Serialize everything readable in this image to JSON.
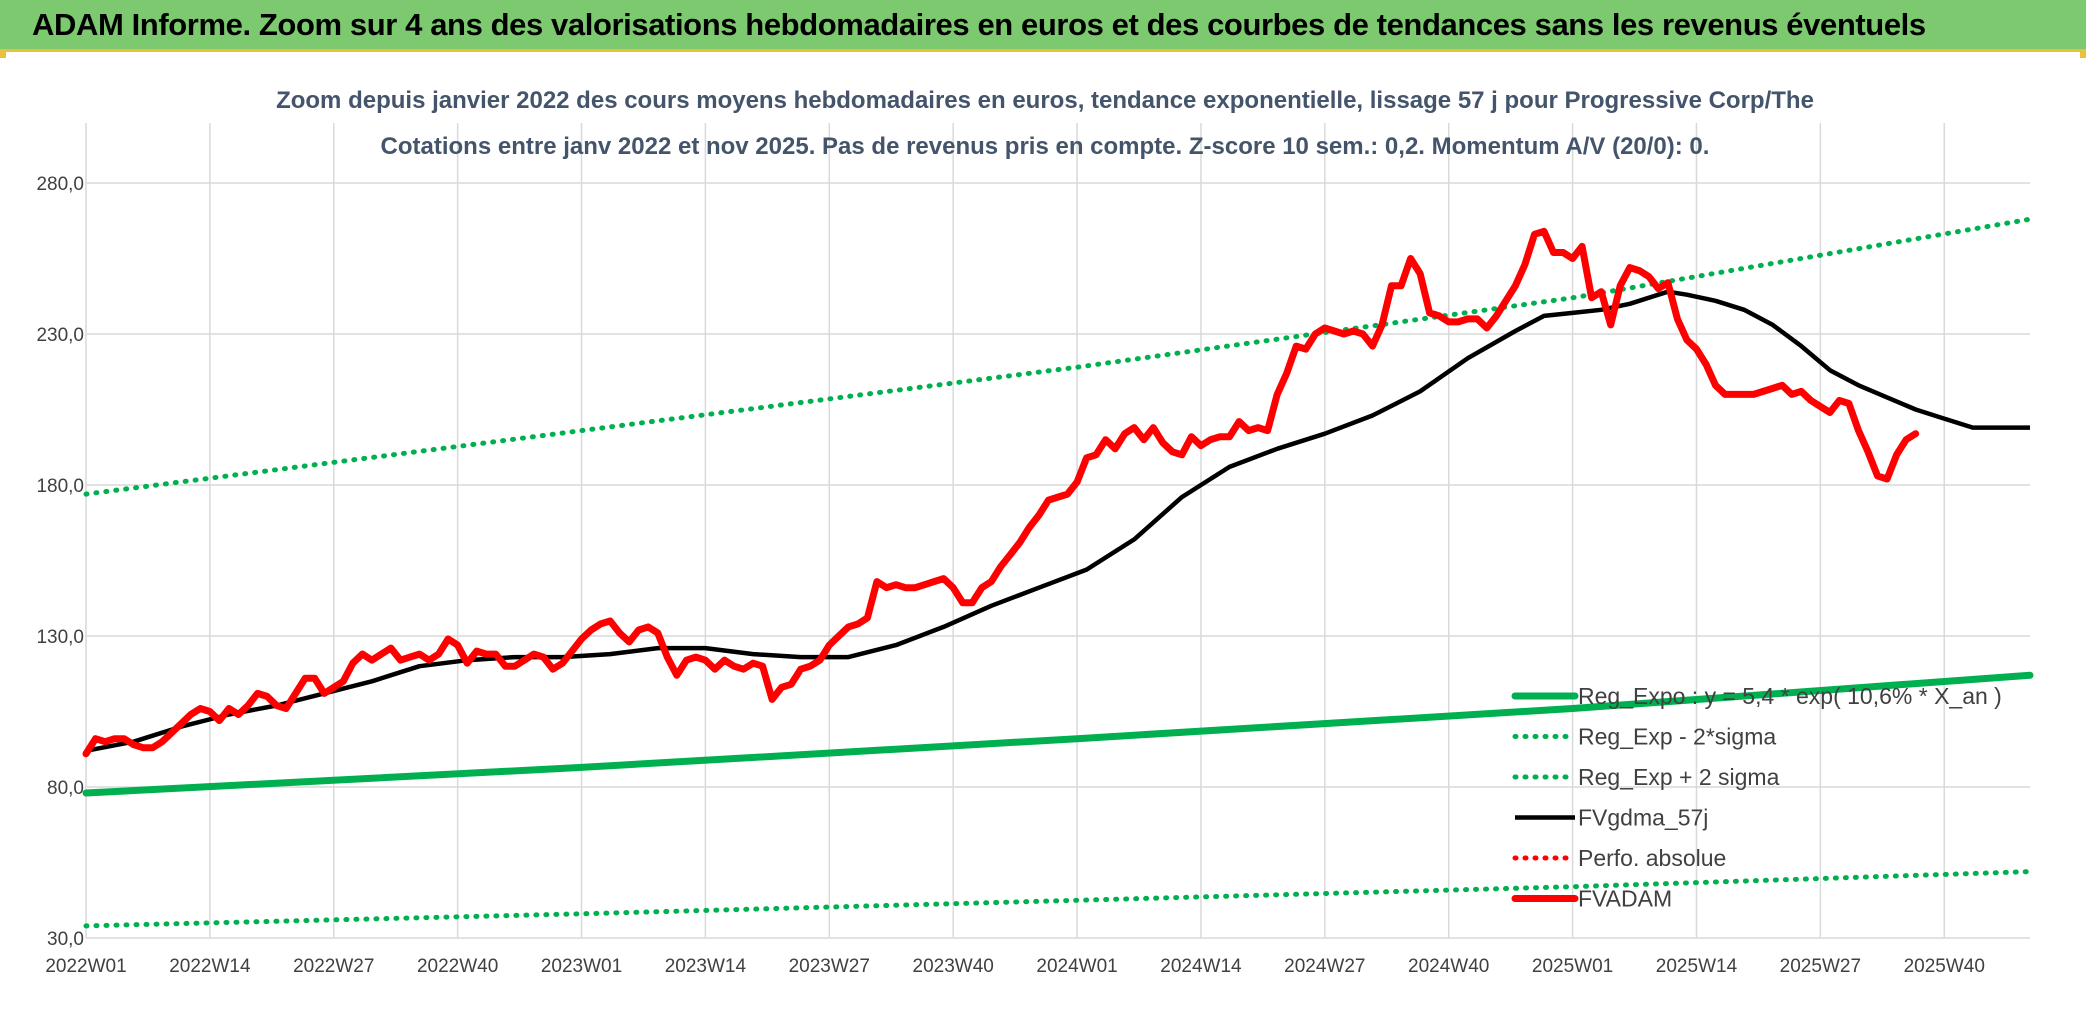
{
  "header": {
    "title": "ADAM Informe. Zoom sur 4 ans des valorisations hebdomadaires en euros et des courbes de tendances sans les revenus éventuels"
  },
  "colors": {
    "banner": "#7cc96f",
    "trend": "#00b050",
    "smooth": "#000000",
    "price": "#ff0000",
    "grid": "#d9d9d9",
    "axis_text": "#404040",
    "title_text": "#44546a"
  },
  "chart_data": {
    "type": "line",
    "title_lines": [
      "Zoom depuis janvier 2022 des cours moyens hebdomadaires en euros, tendance exponentielle, lissage 57 j pour Progressive Corp/The",
      "Cotations entre janv 2022 et nov 2025. Pas de revenus pris en compte. Z-score 10 sem.: 0,2. Momentum A/V (20/0): 0."
    ],
    "x_unit": "week index (0 = 2022W01)",
    "x_ticks": [
      {
        "label": "2022W01",
        "x": 0
      },
      {
        "label": "2022W14",
        "x": 13
      },
      {
        "label": "2022W27",
        "x": 26
      },
      {
        "label": "2022W40",
        "x": 39
      },
      {
        "label": "2023W01",
        "x": 52
      },
      {
        "label": "2023W14",
        "x": 65
      },
      {
        "label": "2023W27",
        "x": 78
      },
      {
        "label": "2023W40",
        "x": 91
      },
      {
        "label": "2024W01",
        "x": 104
      },
      {
        "label": "2024W14",
        "x": 117
      },
      {
        "label": "2024W27",
        "x": 130
      },
      {
        "label": "2024W40",
        "x": 143
      },
      {
        "label": "2025W01",
        "x": 156
      },
      {
        "label": "2025W14",
        "x": 169
      },
      {
        "label": "2025W27",
        "x": 182
      },
      {
        "label": "2025W40",
        "x": 195
      }
    ],
    "xlim": [
      0,
      204
    ],
    "ylim": [
      30,
      280
    ],
    "y_ticks": [
      "30,0",
      "80,0",
      "130,0",
      "180,0",
      "230,0",
      "280,0"
    ],
    "y_tick_values": [
      30,
      80,
      130,
      180,
      230,
      280
    ],
    "legend_position": "bottom-right",
    "series": [
      {
        "name": "Reg_Expo : y = 5,4 * exp( 10,6% *  X_an )",
        "style": "solid-thick",
        "color": "#00b050",
        "points": [
          [
            0,
            78
          ],
          [
            52,
            86.5
          ],
          [
            104,
            96
          ],
          [
            156,
            106
          ],
          [
            204,
            117
          ]
        ]
      },
      {
        "name": "Reg_Exp - 2*sigma",
        "style": "dotted",
        "color": "#00b050",
        "points": [
          [
            0,
            34
          ],
          [
            52,
            38
          ],
          [
            104,
            42.5
          ],
          [
            156,
            47
          ],
          [
            204,
            52
          ]
        ]
      },
      {
        "name": "Reg_Exp + 2 sigma",
        "style": "dotted",
        "color": "#00b050",
        "points": [
          [
            0,
            177
          ],
          [
            52,
            198
          ],
          [
            104,
            219
          ],
          [
            156,
            242
          ],
          [
            204,
            268
          ]
        ]
      },
      {
        "name": "FVgdma_57j",
        "style": "solid",
        "color": "#000000",
        "points": [
          [
            0,
            92
          ],
          [
            5,
            95
          ],
          [
            10,
            100
          ],
          [
            15,
            104
          ],
          [
            20,
            107
          ],
          [
            25,
            111
          ],
          [
            30,
            115
          ],
          [
            35,
            120
          ],
          [
            40,
            122
          ],
          [
            45,
            123
          ],
          [
            50,
            123
          ],
          [
            55,
            124
          ],
          [
            60,
            126
          ],
          [
            65,
            126
          ],
          [
            70,
            124
          ],
          [
            75,
            123
          ],
          [
            80,
            123
          ],
          [
            85,
            127
          ],
          [
            90,
            133
          ],
          [
            95,
            140
          ],
          [
            100,
            146
          ],
          [
            105,
            152
          ],
          [
            110,
            162
          ],
          [
            115,
            176
          ],
          [
            120,
            186
          ],
          [
            125,
            192
          ],
          [
            130,
            197
          ],
          [
            135,
            203
          ],
          [
            140,
            211
          ],
          [
            145,
            222
          ],
          [
            150,
            231
          ],
          [
            153,
            236
          ],
          [
            156,
            237
          ],
          [
            159,
            238
          ],
          [
            162,
            240
          ],
          [
            165,
            243
          ],
          [
            166,
            244
          ],
          [
            168,
            243
          ],
          [
            171,
            241
          ],
          [
            174,
            238
          ],
          [
            177,
            233
          ],
          [
            180,
            226
          ],
          [
            183,
            218
          ],
          [
            186,
            213
          ],
          [
            189,
            209
          ],
          [
            192,
            205
          ],
          [
            195,
            202
          ],
          [
            198,
            199
          ],
          [
            201,
            199
          ],
          [
            204,
            199
          ]
        ]
      },
      {
        "name": "Perfo. absolue",
        "style": "dotted",
        "color": "#ff0000",
        "points": []
      },
      {
        "name": "FVADAM",
        "style": "solid-thick",
        "color": "#ff0000",
        "points": [
          [
            0,
            91
          ],
          [
            1,
            96
          ],
          [
            2,
            95
          ],
          [
            3,
            96
          ],
          [
            4,
            96
          ],
          [
            5,
            94
          ],
          [
            6,
            93
          ],
          [
            7,
            93
          ],
          [
            8,
            95
          ],
          [
            9,
            98
          ],
          [
            10,
            101
          ],
          [
            11,
            104
          ],
          [
            12,
            106
          ],
          [
            13,
            105
          ],
          [
            14,
            102
          ],
          [
            15,
            106
          ],
          [
            16,
            104
          ],
          [
            17,
            107
          ],
          [
            18,
            111
          ],
          [
            19,
            110
          ],
          [
            20,
            107
          ],
          [
            21,
            106
          ],
          [
            22,
            111
          ],
          [
            23,
            116
          ],
          [
            24,
            116
          ],
          [
            25,
            111
          ],
          [
            26,
            113
          ],
          [
            27,
            115
          ],
          [
            28,
            121
          ],
          [
            29,
            124
          ],
          [
            30,
            122
          ],
          [
            31,
            124
          ],
          [
            32,
            126
          ],
          [
            33,
            122
          ],
          [
            34,
            123
          ],
          [
            35,
            124
          ],
          [
            36,
            122
          ],
          [
            37,
            124
          ],
          [
            38,
            129
          ],
          [
            39,
            127
          ],
          [
            40,
            121
          ],
          [
            41,
            125
          ],
          [
            42,
            124
          ],
          [
            43,
            124
          ],
          [
            44,
            120
          ],
          [
            45,
            120
          ],
          [
            46,
            122
          ],
          [
            47,
            124
          ],
          [
            48,
            123
          ],
          [
            49,
            119
          ],
          [
            50,
            121
          ],
          [
            51,
            125
          ],
          [
            52,
            129
          ],
          [
            53,
            132
          ],
          [
            54,
            134
          ],
          [
            55,
            135
          ],
          [
            56,
            131
          ],
          [
            57,
            128
          ],
          [
            58,
            132
          ],
          [
            59,
            133
          ],
          [
            60,
            131
          ],
          [
            61,
            123
          ],
          [
            62,
            117
          ],
          [
            63,
            122
          ],
          [
            64,
            123
          ],
          [
            65,
            122
          ],
          [
            66,
            119
          ],
          [
            67,
            122
          ],
          [
            68,
            120
          ],
          [
            69,
            119
          ],
          [
            70,
            121
          ],
          [
            71,
            120
          ],
          [
            72,
            109
          ],
          [
            73,
            113
          ],
          [
            74,
            114
          ],
          [
            75,
            119
          ],
          [
            76,
            120
          ],
          [
            77,
            122
          ],
          [
            78,
            127
          ],
          [
            79,
            130
          ],
          [
            80,
            133
          ],
          [
            81,
            134
          ],
          [
            82,
            136
          ],
          [
            83,
            148
          ],
          [
            84,
            146
          ],
          [
            85,
            147
          ],
          [
            86,
            146
          ],
          [
            87,
            146
          ],
          [
            88,
            147
          ],
          [
            89,
            148
          ],
          [
            90,
            149
          ],
          [
            91,
            146
          ],
          [
            92,
            141
          ],
          [
            93,
            141
          ],
          [
            94,
            146
          ],
          [
            95,
            148
          ],
          [
            96,
            153
          ],
          [
            97,
            157
          ],
          [
            98,
            161
          ],
          [
            99,
            166
          ],
          [
            100,
            170
          ],
          [
            101,
            175
          ],
          [
            102,
            176
          ],
          [
            103,
            177
          ],
          [
            104,
            181
          ],
          [
            105,
            189
          ],
          [
            106,
            190
          ],
          [
            107,
            195
          ],
          [
            108,
            192
          ],
          [
            109,
            197
          ],
          [
            110,
            199
          ],
          [
            111,
            195
          ],
          [
            112,
            199
          ],
          [
            113,
            194
          ],
          [
            114,
            191
          ],
          [
            115,
            190
          ],
          [
            116,
            196
          ],
          [
            117,
            193
          ],
          [
            118,
            195
          ],
          [
            119,
            196
          ],
          [
            120,
            196
          ],
          [
            121,
            201
          ],
          [
            122,
            198
          ],
          [
            123,
            199
          ],
          [
            124,
            198
          ],
          [
            125,
            210
          ],
          [
            126,
            217
          ],
          [
            127,
            226
          ],
          [
            128,
            225
          ],
          [
            129,
            230
          ],
          [
            130,
            232
          ],
          [
            131,
            231
          ],
          [
            132,
            230
          ],
          [
            133,
            231
          ],
          [
            134,
            230
          ],
          [
            135,
            226
          ],
          [
            136,
            233
          ],
          [
            137,
            246
          ],
          [
            138,
            246
          ],
          [
            139,
            255
          ],
          [
            140,
            250
          ],
          [
            141,
            237
          ],
          [
            142,
            236
          ],
          [
            143,
            234
          ],
          [
            144,
            234
          ],
          [
            145,
            235
          ],
          [
            146,
            235
          ],
          [
            147,
            232
          ],
          [
            148,
            236
          ],
          [
            149,
            241
          ],
          [
            150,
            246
          ],
          [
            151,
            253
          ],
          [
            152,
            263
          ],
          [
            153,
            264
          ],
          [
            154,
            257
          ],
          [
            155,
            257
          ],
          [
            156,
            255
          ],
          [
            157,
            259
          ],
          [
            158,
            242
          ],
          [
            159,
            244
          ],
          [
            160,
            233
          ],
          [
            161,
            246
          ],
          [
            162,
            252
          ],
          [
            163,
            251
          ],
          [
            164,
            249
          ],
          [
            165,
            245
          ],
          [
            166,
            247
          ],
          [
            167,
            235
          ],
          [
            168,
            228
          ],
          [
            169,
            225
          ],
          [
            170,
            220
          ],
          [
            171,
            213
          ],
          [
            172,
            210
          ],
          [
            173,
            210
          ],
          [
            174,
            210
          ],
          [
            175,
            210
          ],
          [
            176,
            211
          ],
          [
            177,
            212
          ],
          [
            178,
            213
          ],
          [
            179,
            210
          ],
          [
            180,
            211
          ],
          [
            181,
            208
          ],
          [
            182,
            206
          ],
          [
            183,
            204
          ],
          [
            184,
            208
          ],
          [
            185,
            207
          ],
          [
            186,
            198
          ],
          [
            187,
            191
          ],
          [
            188,
            183
          ],
          [
            189,
            182
          ],
          [
            190,
            190
          ],
          [
            191,
            195
          ],
          [
            192,
            197
          ]
        ]
      }
    ]
  }
}
